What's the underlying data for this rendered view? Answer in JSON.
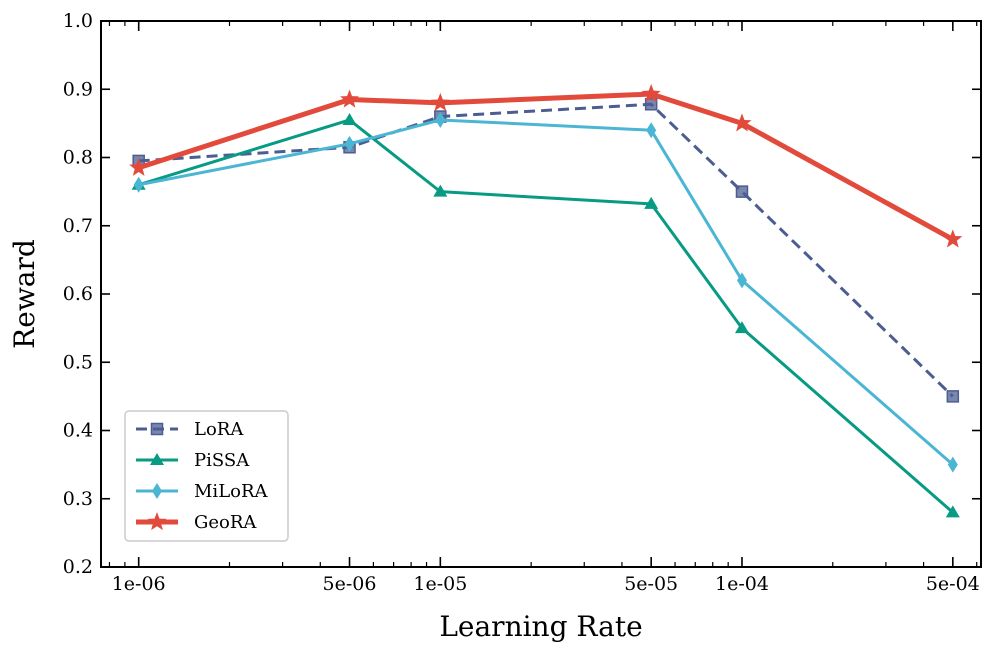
{
  "chart_data": {
    "type": "line",
    "xscale": "log",
    "xlabel": "Learning Rate",
    "ylabel": "Reward",
    "x": [
      1e-06,
      5e-06,
      1e-05,
      5e-05,
      0.0001,
      0.0005
    ],
    "x_tick_labels": [
      "1e-06",
      "5e-06",
      "1e-05",
      "5e-05",
      "1e-04",
      "5e-04"
    ],
    "xlim": [
      7.5e-07,
      0.00062
    ],
    "ylim": [
      0.2,
      1.0
    ],
    "y_ticks": [
      0.2,
      0.3,
      0.4,
      0.5,
      0.6,
      0.7,
      0.8,
      0.9,
      1.0
    ],
    "y_tick_labels": [
      "0.2",
      "0.3",
      "0.4",
      "0.5",
      "0.6",
      "0.7",
      "0.8",
      "0.9",
      "1.0"
    ],
    "legend_position": "lower-left",
    "series": [
      {
        "name": "LoRA",
        "values": [
          0.795,
          0.815,
          0.86,
          0.878,
          0.75,
          0.45
        ],
        "color": "#4c5e91",
        "marker": "square",
        "dash": true,
        "width": 3
      },
      {
        "name": "PiSSA",
        "values": [
          0.76,
          0.855,
          0.75,
          0.732,
          0.55,
          0.28
        ],
        "color": "#069b82",
        "marker": "triangle",
        "dash": false,
        "width": 3
      },
      {
        "name": "MiLoRA",
        "values": [
          0.76,
          0.82,
          0.855,
          0.84,
          0.62,
          0.35
        ],
        "color": "#4bb6d3",
        "marker": "diamond",
        "dash": false,
        "width": 3
      },
      {
        "name": "GeoRA",
        "values": [
          0.785,
          0.885,
          0.88,
          0.893,
          0.85,
          0.68
        ],
        "color": "#e24b3c",
        "marker": "star",
        "dash": false,
        "width": 5
      }
    ]
  }
}
